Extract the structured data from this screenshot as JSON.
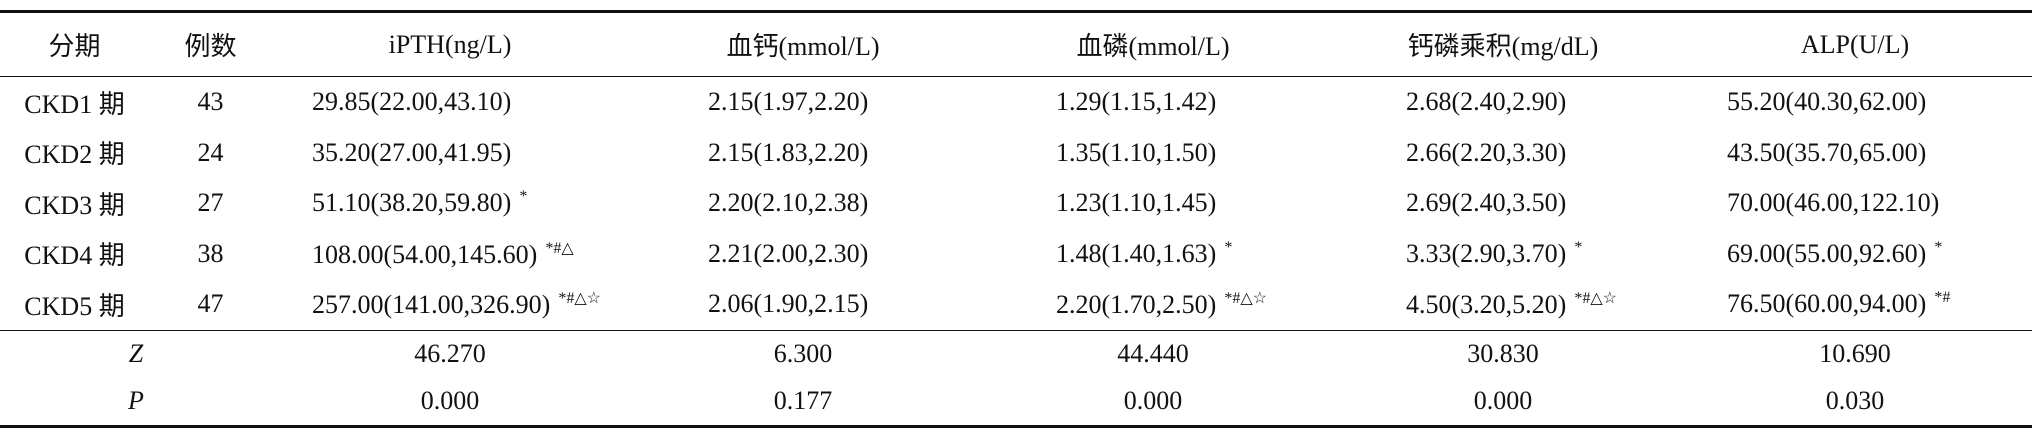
{
  "table": {
    "header": [
      "分期",
      "例数",
      "iPTH(ng/L)",
      "血钙(mmol/L)",
      "血磷(mmol/L)",
      "钙磷乘积(mg/dL)",
      "ALP(U/L)"
    ],
    "rows": [
      [
        "CKD1 期",
        "43",
        {
          "text": "29.85(22.00,43.10)"
        },
        {
          "text": "2.15(1.97,2.20)"
        },
        {
          "text": "1.29(1.15,1.42)"
        },
        {
          "text": "2.68(2.40,2.90)"
        },
        {
          "text": "55.20(40.30,62.00)"
        }
      ],
      [
        "CKD2 期",
        "24",
        {
          "text": "35.20(27.00,41.95)"
        },
        {
          "text": "2.15(1.83,2.20)"
        },
        {
          "text": "1.35(1.10,1.50)"
        },
        {
          "text": "2.66(2.20,3.30)"
        },
        {
          "text": "43.50(35.70,65.00)"
        }
      ],
      [
        "CKD3 期",
        "27",
        {
          "text": "51.10(38.20,59.80)",
          "sup": "*"
        },
        {
          "text": "2.20(2.10,2.38)"
        },
        {
          "text": "1.23(1.10,1.45)"
        },
        {
          "text": "2.69(2.40,3.50)"
        },
        {
          "text": "70.00(46.00,122.10)"
        }
      ],
      [
        "CKD4 期",
        "38",
        {
          "text": "108.00(54.00,145.60)",
          "sup": "*#△"
        },
        {
          "text": "2.21(2.00,2.30)"
        },
        {
          "text": "1.48(1.40,1.63)",
          "sup": "*"
        },
        {
          "text": "3.33(2.90,3.70)",
          "sup": "*"
        },
        {
          "text": "69.00(55.00,92.60)",
          "sup": "*"
        }
      ],
      [
        "CKD5 期",
        "47",
        {
          "text": "257.00(141.00,326.90)",
          "sup": "*#△☆"
        },
        {
          "text": "2.06(1.90,2.15)"
        },
        {
          "text": "2.20(1.70,2.50)",
          "sup": "*#△☆"
        },
        {
          "text": "4.50(3.20,5.20)",
          "sup": "*#△☆"
        },
        {
          "text": "76.50(60.00,94.00)",
          "sup": "*#"
        }
      ]
    ],
    "stats": [
      [
        "Z",
        "46.270",
        "6.300",
        "44.440",
        "30.830",
        "10.690"
      ],
      [
        "P",
        "0.000",
        "0.177",
        "0.000",
        "0.000",
        "0.030"
      ]
    ]
  }
}
